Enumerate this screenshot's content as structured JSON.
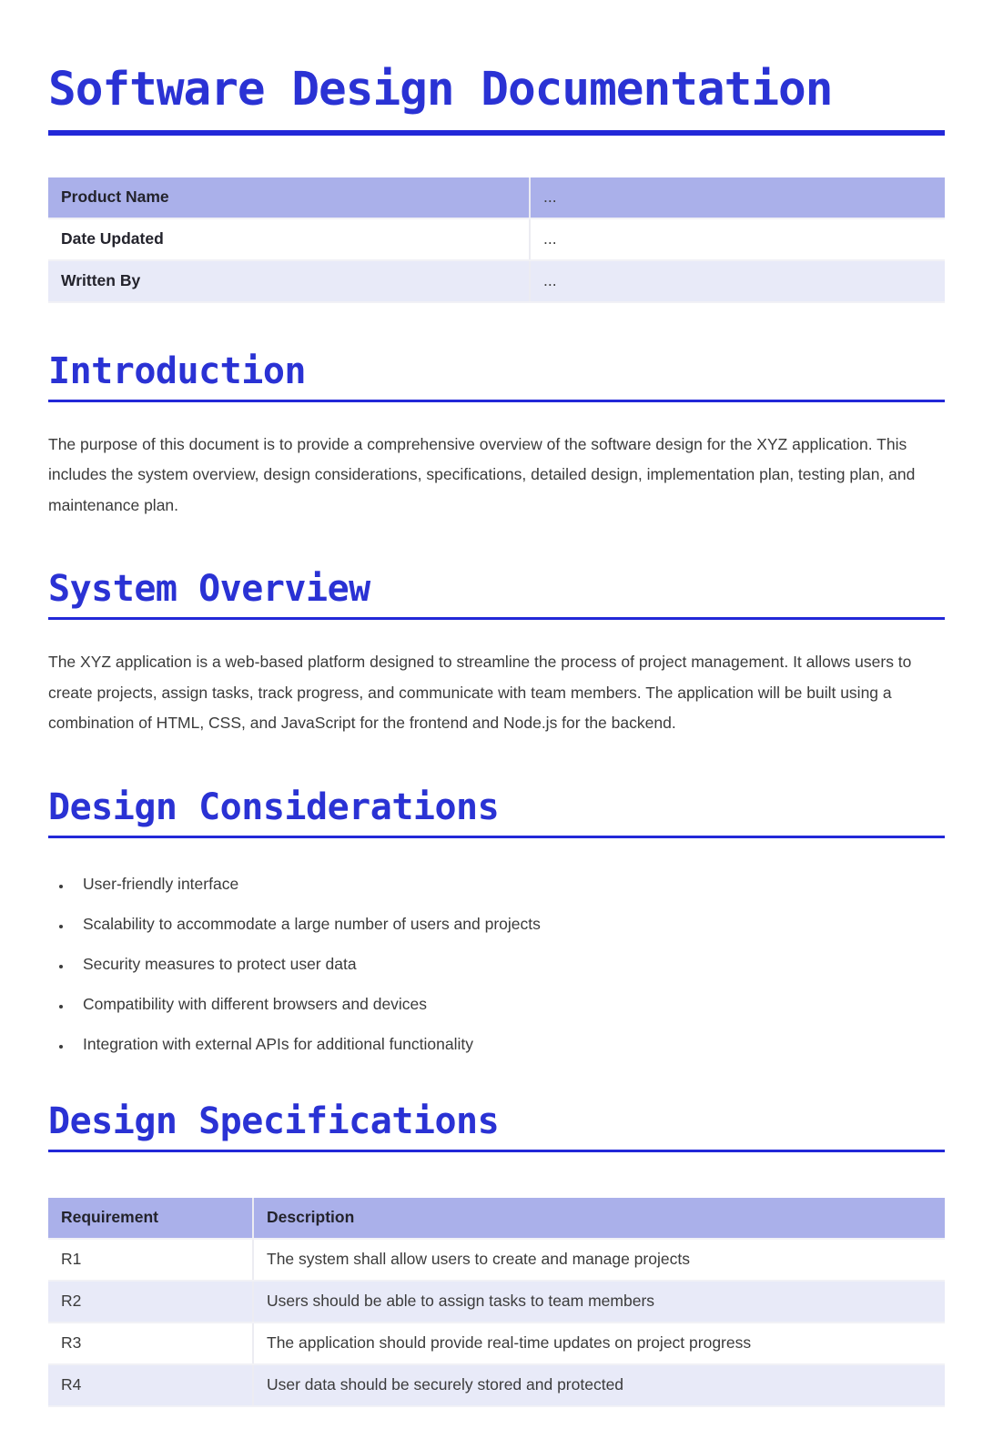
{
  "page": {
    "title": "Software Design Documentation"
  },
  "colors": {
    "accent_blue": "#2a32d4",
    "rule_blue": "#2228d8",
    "table_header_bg": "#aab0ea",
    "table_stripe_bg": "#e8eaf8",
    "body_text": "#3b3b3b"
  },
  "meta": {
    "rows": [
      {
        "label": "Product Name",
        "value": "..."
      },
      {
        "label": "Date Updated",
        "value": "..."
      },
      {
        "label": "Written By",
        "value": "..."
      }
    ]
  },
  "sections": {
    "introduction": {
      "heading": "Introduction",
      "body": "The purpose of this document is to provide a comprehensive overview of the software design for the XYZ application. This includes the system overview, design considerations, specifications, detailed design, implementation plan, testing plan, and maintenance plan."
    },
    "system_overview": {
      "heading": "System Overview",
      "body": "The XYZ application is a web-based platform designed to streamline the process of project management. It allows users to create projects, assign tasks, track progress, and communicate with team members. The application will be built using a combination of HTML, CSS, and JavaScript for the frontend and Node.js for the backend."
    },
    "design_considerations": {
      "heading": "Design Considerations",
      "items": [
        "User-friendly interface",
        "Scalability to accommodate a large number of users and projects",
        "Security measures to protect user data",
        "Compatibility with different browsers and devices",
        "Integration with external APIs for additional functionality"
      ]
    },
    "design_specifications": {
      "heading": "Design Specifications",
      "table": {
        "headers": [
          "Requirement",
          "Description"
        ],
        "rows": [
          {
            "req": "R1",
            "desc": "The system shall allow users to create and manage projects"
          },
          {
            "req": "R2",
            "desc": "Users should be able to assign tasks to team members"
          },
          {
            "req": "R3",
            "desc": "The application should provide real-time updates on project progress"
          },
          {
            "req": "R4",
            "desc": "User data should be securely stored and protected"
          }
        ]
      }
    }
  }
}
